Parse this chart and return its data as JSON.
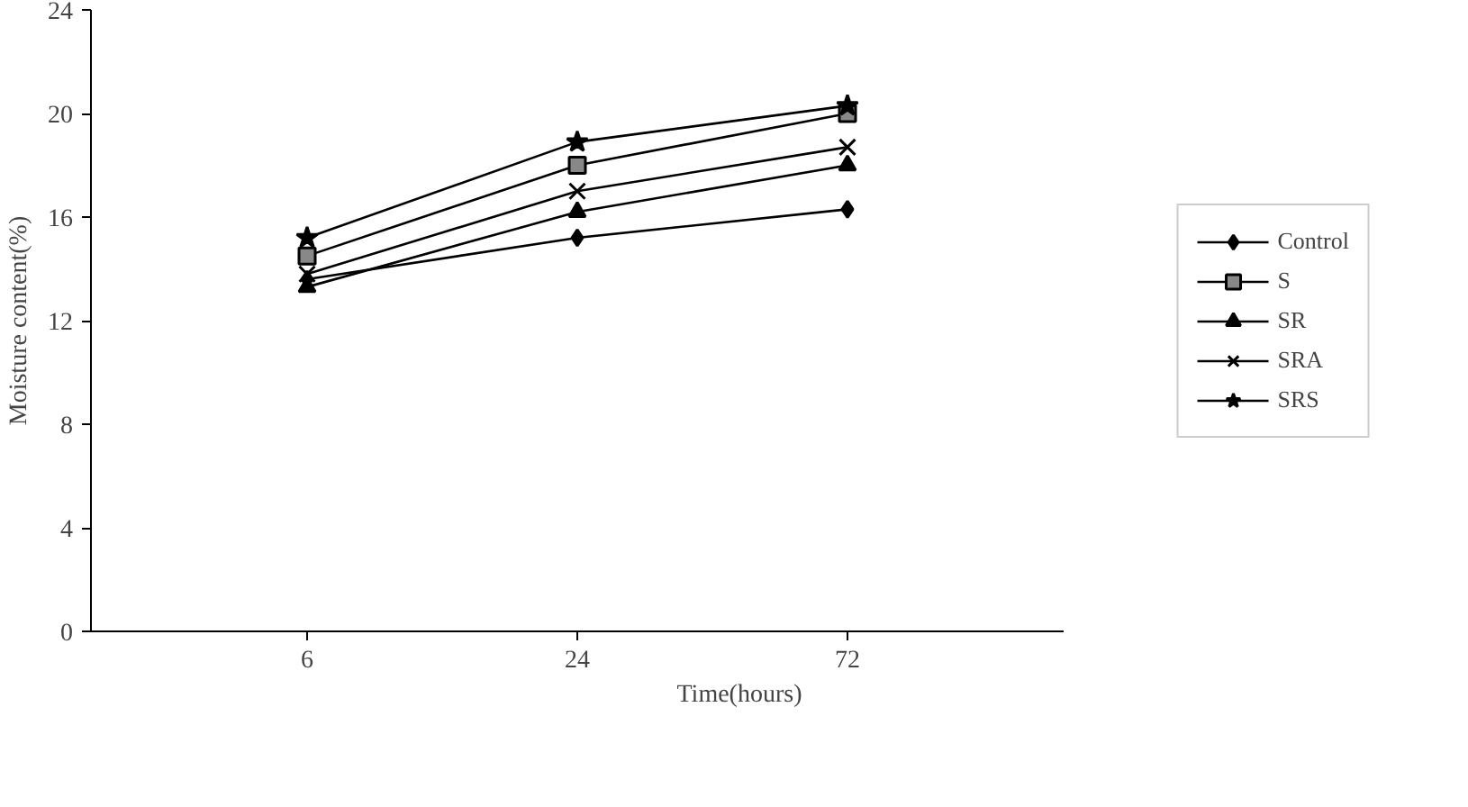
{
  "chart_data": {
    "type": "line",
    "xlabel": "Time(hours)",
    "ylabel": "Moisture content(%)",
    "categories": [
      "6",
      "24",
      "72"
    ],
    "ylim": [
      0,
      24
    ],
    "yticks": [
      0,
      4,
      8,
      12,
      16,
      20,
      24
    ],
    "grid": false,
    "legend": "right",
    "line_style": "solid",
    "series": [
      {
        "name": "Control",
        "color": "#000000",
        "marker": "diamond",
        "values": [
          13.6,
          15.2,
          16.3
        ]
      },
      {
        "name": "S",
        "color": "#000000",
        "marker": "square",
        "values": [
          14.5,
          18.0,
          20.0
        ]
      },
      {
        "name": "SR",
        "color": "#000000",
        "marker": "triangle",
        "values": [
          13.3,
          16.2,
          18.0
        ]
      },
      {
        "name": "SRA",
        "color": "#000000",
        "marker": "cross",
        "values": [
          13.8,
          17.0,
          18.7
        ]
      },
      {
        "name": "SRS",
        "color": "#000000",
        "marker": "star",
        "values": [
          15.2,
          18.9,
          20.3
        ]
      }
    ]
  }
}
